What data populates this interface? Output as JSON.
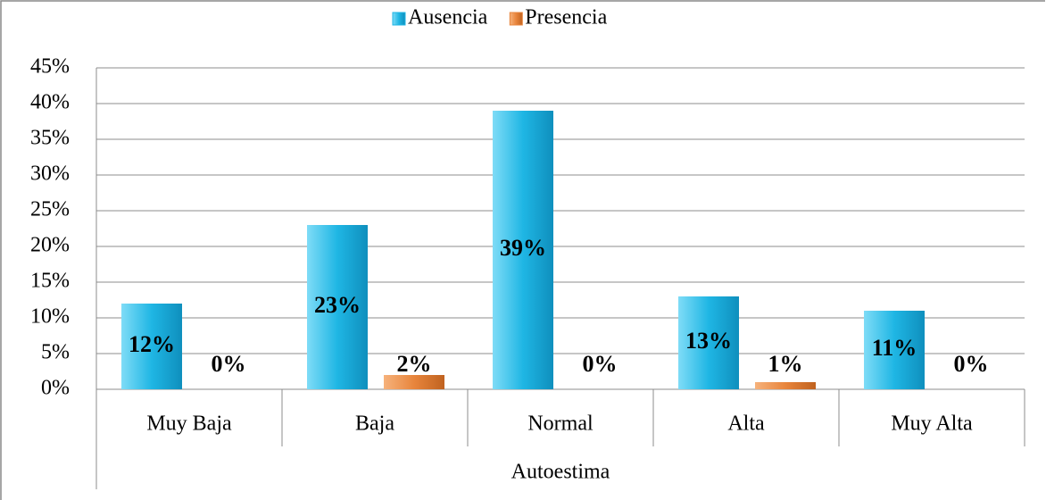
{
  "chart_data": {
    "type": "bar",
    "categories": [
      "Muy Baja",
      "Baja",
      "Normal",
      "Alta",
      "Muy Alta"
    ],
    "x_label": "Autoestima",
    "series": [
      {
        "name": "Ausencia",
        "color": "#1fb6e4",
        "values": [
          12,
          23,
          39,
          13,
          11
        ],
        "value_labels": [
          "12%",
          "23%",
          "39%",
          "13%",
          "11%"
        ]
      },
      {
        "name": "Presencia",
        "color": "#e8853c",
        "values": [
          0,
          2,
          0,
          1,
          0
        ],
        "value_labels": [
          "0%",
          "2%",
          "0%",
          "1%",
          "0%"
        ]
      }
    ],
    "ylim": [
      0,
      45
    ],
    "yticks": [
      {
        "value": 0,
        "label": "0%"
      },
      {
        "value": 5,
        "label": "5%"
      },
      {
        "value": 10,
        "label": "10%"
      },
      {
        "value": 15,
        "label": "15%"
      },
      {
        "value": 20,
        "label": "20%"
      },
      {
        "value": 25,
        "label": "25%"
      },
      {
        "value": 30,
        "label": "30%"
      },
      {
        "value": 35,
        "label": "35%"
      },
      {
        "value": 40,
        "label": "40%"
      },
      {
        "value": 45,
        "label": "45%"
      }
    ],
    "grid": true,
    "legend": "top"
  }
}
